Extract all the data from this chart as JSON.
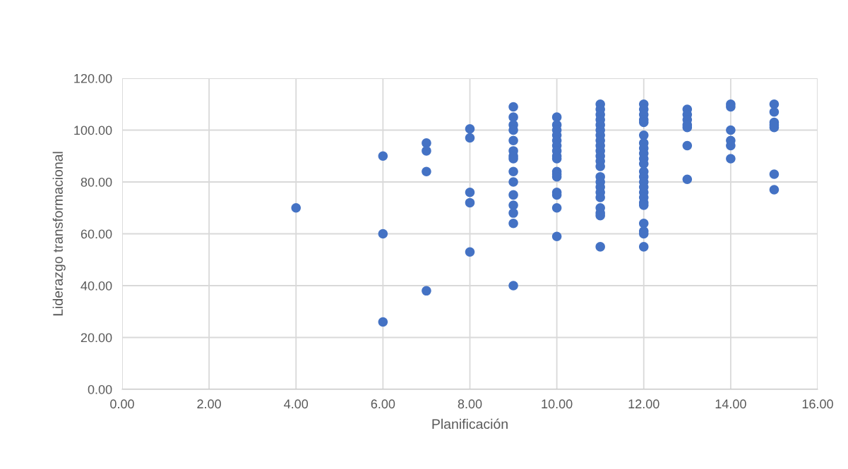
{
  "chart_data": {
    "type": "scatter",
    "xlabel": "Planificación",
    "ylabel": "Liderazgo transformacional",
    "x": [
      4,
      6,
      6,
      6,
      7,
      7,
      7,
      7,
      8,
      8,
      8,
      8,
      8,
      9,
      9,
      9,
      9,
      9,
      9,
      9,
      9,
      9,
      9,
      9,
      9,
      9,
      9,
      9,
      10,
      10,
      10,
      10,
      10,
      10,
      10,
      10,
      10,
      10,
      10,
      10,
      10,
      10,
      10,
      10,
      11,
      11,
      11,
      11,
      11,
      11,
      11,
      11,
      11,
      11,
      11,
      11,
      11,
      11,
      11,
      11,
      11,
      11,
      11,
      11,
      11,
      11,
      12,
      12,
      12,
      12,
      12,
      12,
      12,
      12,
      12,
      12,
      12,
      12,
      12,
      12,
      12,
      12,
      12,
      12,
      12,
      12,
      12,
      12,
      12,
      13,
      13,
      13,
      13,
      13,
      13,
      13,
      14,
      14,
      14,
      14,
      14,
      14,
      15,
      15,
      15,
      15,
      15,
      15,
      15
    ],
    "series": [
      {
        "color": "#4472c4",
        "values": [
          70,
          90,
          60,
          26,
          95,
          92,
          84,
          38,
          100.5,
          97,
          76,
          72,
          53,
          109,
          105,
          102,
          100,
          96,
          92,
          90,
          89,
          84,
          80,
          75,
          71,
          68,
          64,
          40,
          105,
          102,
          100,
          98,
          96,
          94,
          92,
          90,
          89,
          84,
          83,
          82,
          76,
          75,
          70,
          59,
          110,
          108,
          106,
          104,
          102,
          100,
          98,
          96,
          94,
          92,
          90,
          88,
          86,
          82,
          80,
          78,
          76,
          74,
          70,
          68,
          67,
          55,
          110,
          108,
          106,
          104,
          103,
          98,
          95,
          93,
          91,
          89,
          87,
          84,
          82,
          80,
          78,
          76,
          74,
          72,
          71,
          64,
          61,
          60,
          55,
          108,
          106,
          104,
          102,
          101,
          94,
          81,
          110,
          109,
          100,
          96,
          94,
          89,
          110,
          107,
          103,
          102,
          101,
          83,
          77
        ]
      }
    ],
    "xlim": [
      0,
      16
    ],
    "ylim": [
      0,
      120
    ],
    "xticks": [
      {
        "value": 0,
        "label": "0.00"
      },
      {
        "value": 2,
        "label": "2.00"
      },
      {
        "value": 4,
        "label": "4.00"
      },
      {
        "value": 6,
        "label": "6.00"
      },
      {
        "value": 8,
        "label": "8.00"
      },
      {
        "value": 10,
        "label": "10.00"
      },
      {
        "value": 12,
        "label": "12.00"
      },
      {
        "value": 14,
        "label": "14.00"
      },
      {
        "value": 16,
        "label": "16.00"
      }
    ],
    "yticks": [
      {
        "value": 0,
        "label": "0.00"
      },
      {
        "value": 20,
        "label": "20.00"
      },
      {
        "value": 40,
        "label": "40.00"
      },
      {
        "value": 60,
        "label": "60.00"
      },
      {
        "value": 80,
        "label": "80.00"
      },
      {
        "value": 100,
        "label": "100.00"
      },
      {
        "value": 120,
        "label": "120.00"
      }
    ],
    "grid": true,
    "marker": "circle"
  }
}
